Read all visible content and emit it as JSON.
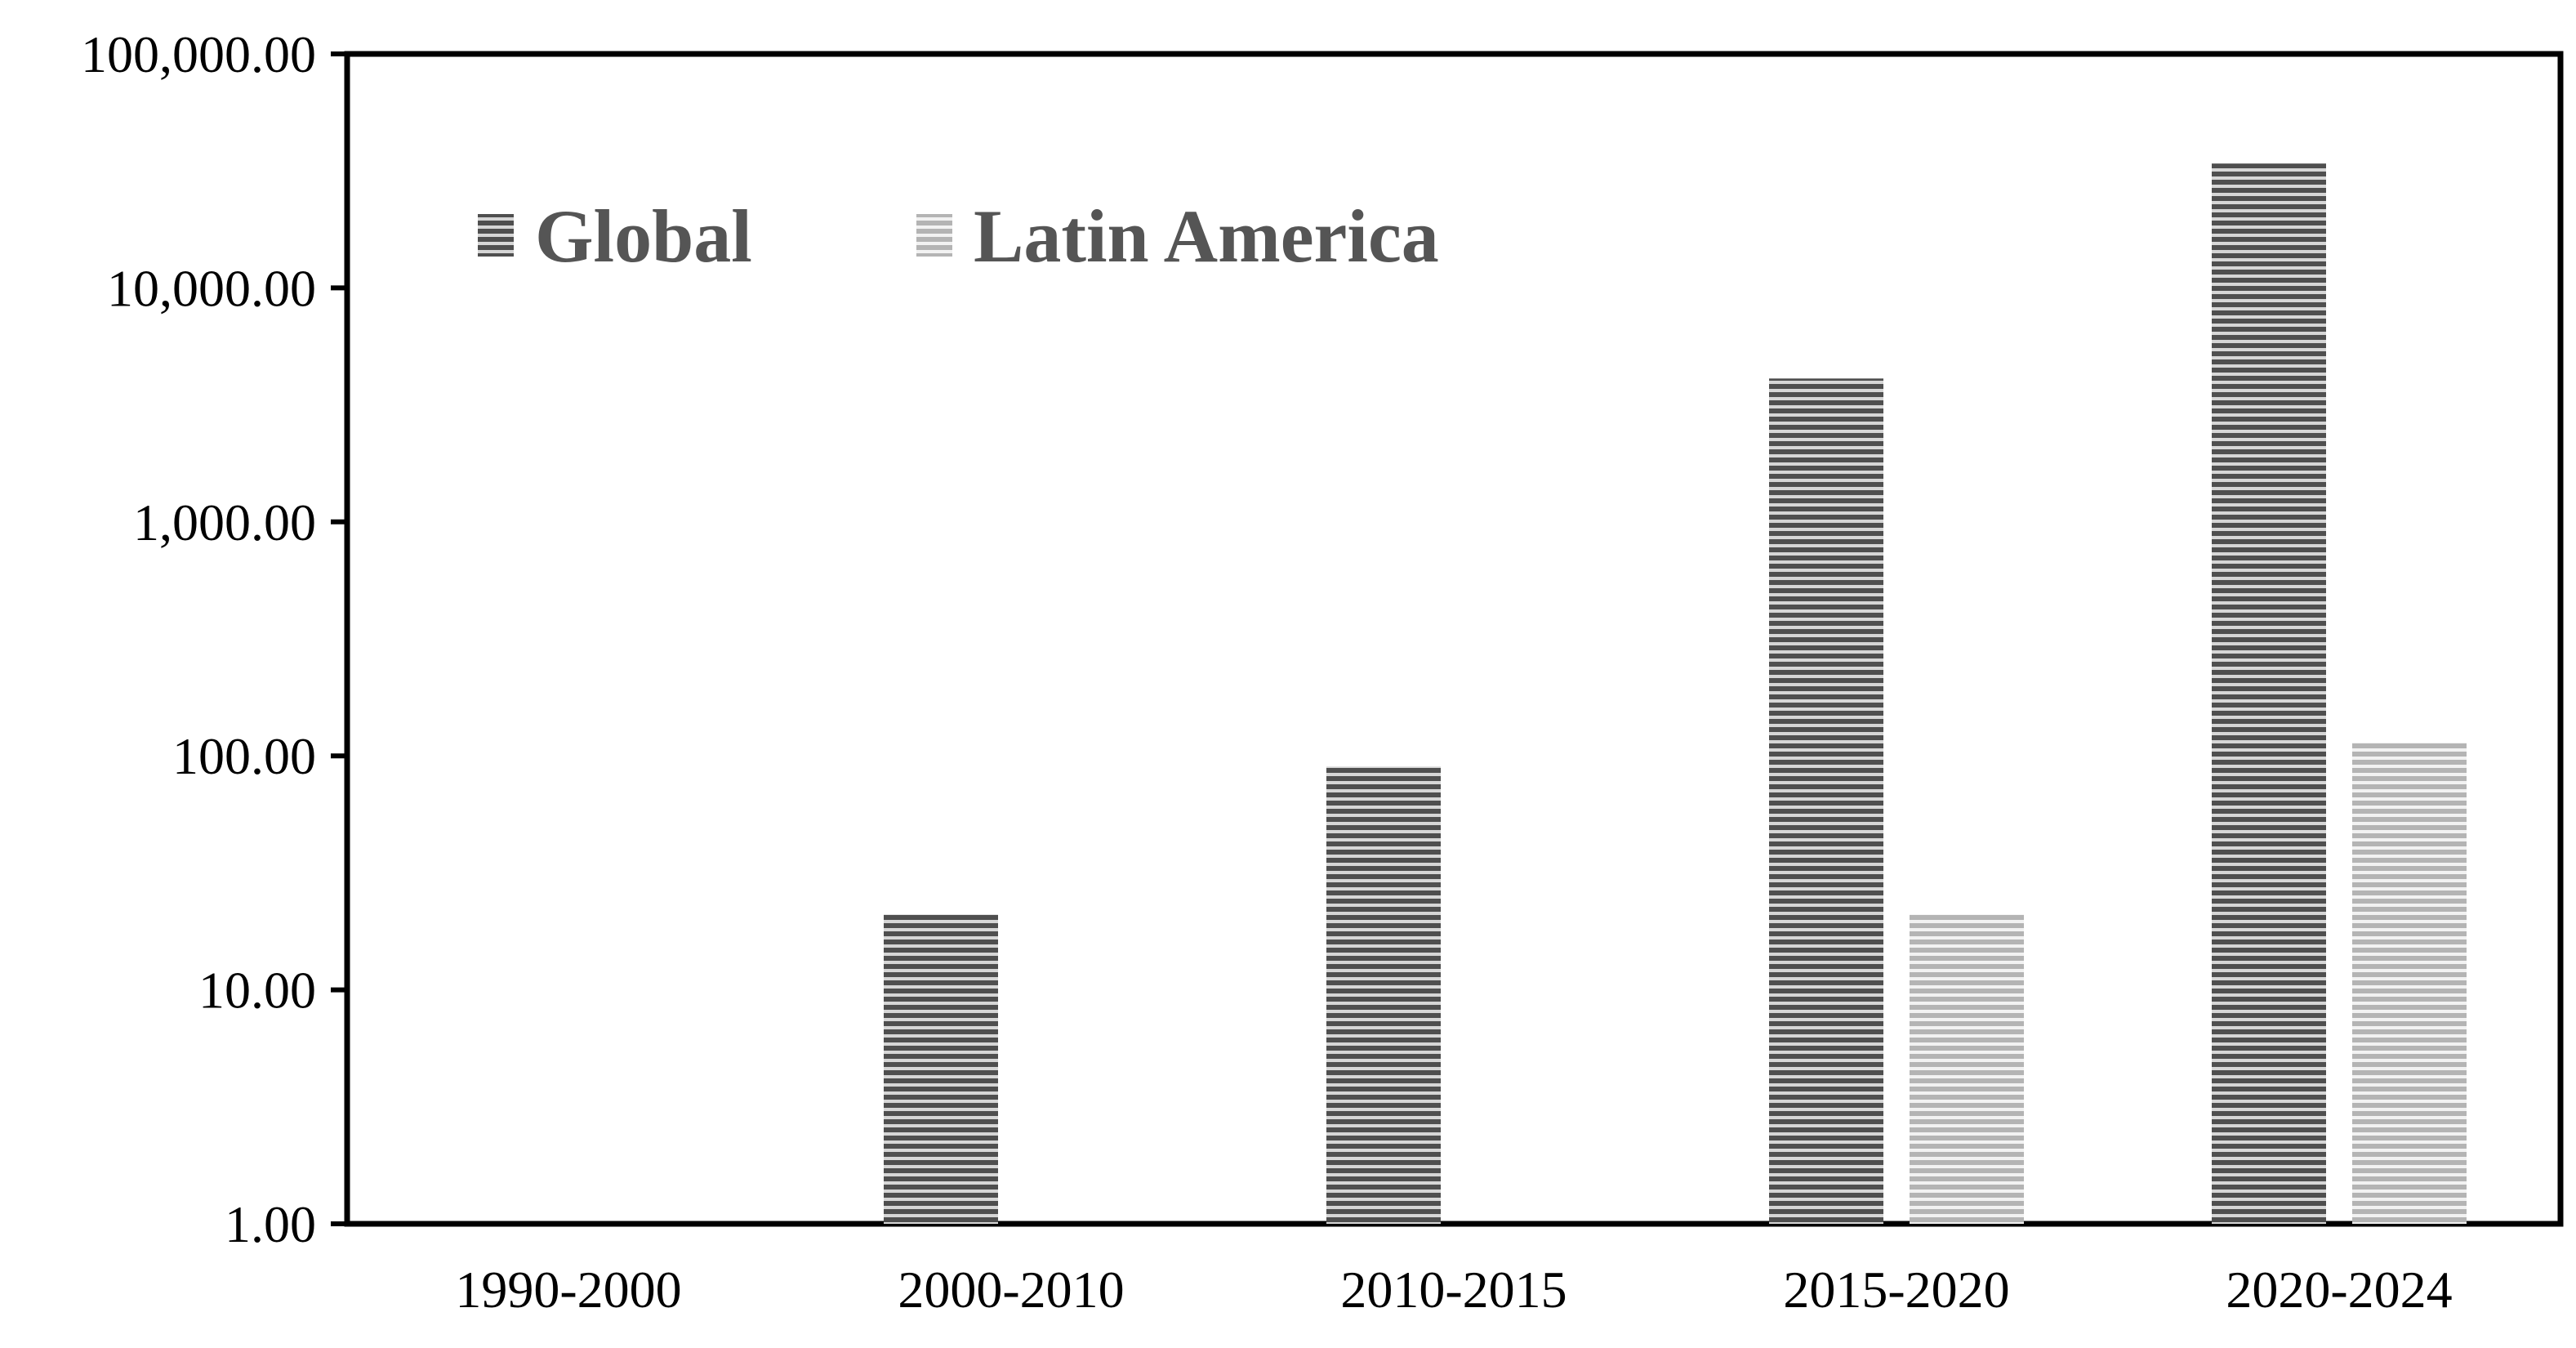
{
  "chart_data": {
    "type": "bar",
    "scale": "log",
    "categories": [
      "1990-2000",
      "2000-2010",
      "2010-2015",
      "2015-2020",
      "2020-2024"
    ],
    "series": [
      {
        "name": "Global",
        "color": "#5a5a5a",
        "values": [
          1,
          21,
          90,
          4100,
          34000
        ]
      },
      {
        "name": "Latin America",
        "color": "#bdbdbd",
        "values": [
          1,
          1,
          1,
          21,
          114
        ]
      }
    ],
    "ylim": [
      1,
      100000
    ],
    "yticks": [
      "1.00",
      "10.00",
      "100.00",
      "1,000.00",
      "10,000.00",
      "100,000.00"
    ],
    "legend_position": "top-left",
    "grid": false
  }
}
